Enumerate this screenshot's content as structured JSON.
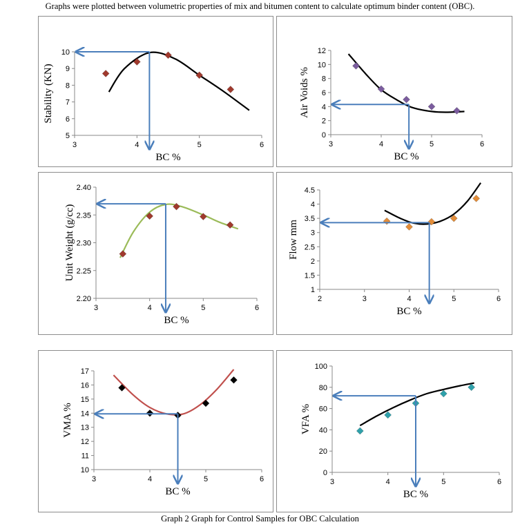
{
  "heading": "Graphs were plotted between volumetric properties of mix and bitumen content to calculate optimum binder content (OBC).",
  "caption": "Graph 2 Graph for Control Samples for OBC Calculation",
  "colors": {
    "arrow": "#4a7ebb",
    "frame": "#8c8c8c"
  },
  "chart_data": [
    {
      "type": "scatter",
      "xlabel": "BC %",
      "ylabel": "Stability (KN)",
      "xlim": [
        3,
        6
      ],
      "ylim": [
        5,
        10
      ],
      "xticks": [
        "3",
        "4",
        "5",
        "6"
      ],
      "yticks": [
        "5",
        "6",
        "7",
        "8",
        "9",
        "10"
      ],
      "x": [
        3.5,
        4.0,
        4.5,
        5.0,
        5.5
      ],
      "y": [
        8.7,
        9.4,
        9.8,
        8.6,
        7.75
      ],
      "marker_color": "#a0392d",
      "curve_color": "#000000",
      "trend": [
        [
          3.55,
          7.6
        ],
        [
          3.8,
          9.0
        ],
        [
          4.2,
          9.95
        ],
        [
          4.6,
          9.6
        ],
        [
          5.0,
          8.6
        ],
        [
          5.4,
          7.6
        ],
        [
          5.8,
          6.5
        ]
      ],
      "obc_x": 4.2,
      "obc_y": 10.0
    },
    {
      "type": "scatter",
      "xlabel": "BC %",
      "ylabel": "Air Voids %",
      "xlim": [
        3,
        6
      ],
      "ylim": [
        0,
        12
      ],
      "xticks": [
        "3",
        "4",
        "5",
        "6"
      ],
      "yticks": [
        "0",
        "2",
        "4",
        "6",
        "8",
        "10",
        "12"
      ],
      "x": [
        3.5,
        4.0,
        4.5,
        5.0,
        5.5
      ],
      "y": [
        9.8,
        6.5,
        5.0,
        4.0,
        3.4
      ],
      "marker_color": "#7b5c9e",
      "curve_color": "#000000",
      "trend": [
        [
          3.35,
          11.5
        ],
        [
          3.7,
          8.6
        ],
        [
          4.0,
          6.4
        ],
        [
          4.3,
          5.0
        ],
        [
          4.6,
          3.9
        ],
        [
          5.0,
          3.3
        ],
        [
          5.3,
          3.2
        ],
        [
          5.65,
          3.3
        ]
      ],
      "obc_x": 4.55,
      "obc_y": 4.3
    },
    {
      "type": "scatter",
      "xlabel": "BC %",
      "ylabel": "Unit Weight (g/cc)",
      "xlim": [
        3,
        6
      ],
      "ylim": [
        2.2,
        2.4
      ],
      "xticks": [
        "3",
        "4",
        "5",
        "6"
      ],
      "yticks": [
        "2.20",
        "2.25",
        "2.30",
        "2.35",
        "2.40"
      ],
      "x": [
        3.5,
        4.0,
        4.5,
        5.0,
        5.5
      ],
      "y": [
        2.28,
        2.348,
        2.365,
        2.347,
        2.332
      ],
      "marker_color": "#a0392d",
      "curve_color": "#9bbb59",
      "trend": [
        [
          3.45,
          2.273
        ],
        [
          3.7,
          2.32
        ],
        [
          4.0,
          2.355
        ],
        [
          4.3,
          2.369
        ],
        [
          4.6,
          2.365
        ],
        [
          5.0,
          2.35
        ],
        [
          5.3,
          2.337
        ],
        [
          5.65,
          2.325
        ]
      ],
      "obc_x": 4.3,
      "obc_y": 2.37
    },
    {
      "type": "scatter",
      "xlabel": "BC %",
      "ylabel": "Flow mm",
      "xlim": [
        2,
        6
      ],
      "ylim": [
        1,
        4.5
      ],
      "xticks": [
        "2",
        "3",
        "4",
        "5",
        "6"
      ],
      "yticks": [
        "1",
        "1.5",
        "2",
        "2.5",
        "3",
        "3.5",
        "4",
        "4.5"
      ],
      "x": [
        3.5,
        4.0,
        4.5,
        5.0,
        5.5
      ],
      "y": [
        3.4,
        3.2,
        3.38,
        3.5,
        4.2
      ],
      "marker_color": "#e38d3a",
      "curve_color": "#000000",
      "trend": [
        [
          3.45,
          3.78
        ],
        [
          3.8,
          3.5
        ],
        [
          4.1,
          3.33
        ],
        [
          4.4,
          3.3
        ],
        [
          4.7,
          3.4
        ],
        [
          5.0,
          3.65
        ],
        [
          5.3,
          4.1
        ],
        [
          5.6,
          4.75
        ]
      ],
      "obc_x": 4.45,
      "obc_y": 3.35
    },
    {
      "type": "scatter",
      "xlabel": "BC %",
      "ylabel": "VMA %",
      "xlim": [
        3,
        6
      ],
      "ylim": [
        10,
        17
      ],
      "xticks": [
        "3",
        "4",
        "5",
        "6"
      ],
      "yticks": [
        "10",
        "11",
        "12",
        "13",
        "14",
        "15",
        "16",
        "17"
      ],
      "x": [
        3.5,
        4.0,
        4.5,
        5.0,
        5.5
      ],
      "y": [
        15.8,
        14.0,
        13.85,
        14.7,
        16.35
      ],
      "marker_color": "#000000",
      "curve_color": "#c0504d",
      "trend": [
        [
          3.35,
          16.7
        ],
        [
          3.7,
          15.3
        ],
        [
          4.0,
          14.4
        ],
        [
          4.3,
          13.95
        ],
        [
          4.6,
          13.95
        ],
        [
          4.9,
          14.6
        ],
        [
          5.2,
          15.7
        ],
        [
          5.5,
          17.1
        ]
      ],
      "obc_x": 4.5,
      "obc_y": 13.95
    },
    {
      "type": "scatter",
      "xlabel": "BC %",
      "ylabel": "VFA %",
      "xlim": [
        3,
        6
      ],
      "ylim": [
        0,
        100
      ],
      "xticks": [
        "3",
        "4",
        "5",
        "6"
      ],
      "yticks": [
        "0",
        "20",
        "40",
        "60",
        "80",
        "100"
      ],
      "x": [
        3.5,
        4.0,
        4.5,
        5.0,
        5.5
      ],
      "y": [
        39,
        54,
        65,
        74,
        80
      ],
      "marker_color": "#2fa1ab",
      "curve_color": "#000000",
      "trend": [
        [
          3.5,
          44
        ],
        [
          3.8,
          53
        ],
        [
          4.1,
          61
        ],
        [
          4.4,
          68
        ],
        [
          4.7,
          74
        ],
        [
          5.0,
          78
        ],
        [
          5.3,
          81.5
        ],
        [
          5.55,
          84
        ]
      ],
      "obc_x": 4.5,
      "obc_y": 72
    }
  ]
}
